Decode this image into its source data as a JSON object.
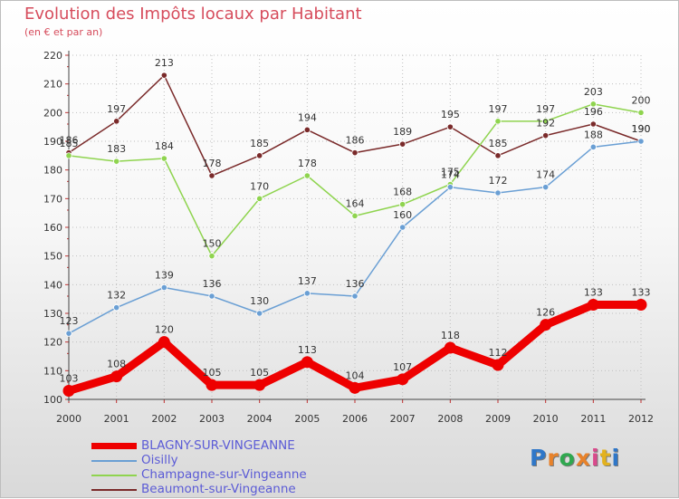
{
  "title": "Evolution des Impôts locaux par Habitant",
  "subtitle": "(en € et par an)",
  "logo": {
    "text": "Proxiti",
    "letters": [
      "P",
      "r",
      "o",
      "x",
      "i",
      "t",
      "i"
    ],
    "colors": [
      "#2f77c8",
      "#e8822a",
      "#2fa84f",
      "#e8822a",
      "#d94a8c",
      "#e3b21e",
      "#2f77c8"
    ]
  },
  "chart_data": {
    "type": "line",
    "categories": [
      "2000",
      "2001",
      "2002",
      "2003",
      "2004",
      "2005",
      "2006",
      "2007",
      "2008",
      "2009",
      "2010",
      "2011",
      "2012"
    ],
    "ylim": [
      100,
      220
    ],
    "yticks": [
      "100",
      "110",
      "120",
      "130",
      "140",
      "150",
      "160",
      "170",
      "180",
      "190",
      "200",
      "210",
      "220"
    ],
    "grid": true,
    "legend_position": "bottom-left",
    "series": [
      {
        "name": "BLAGNY-SUR-VINGEANNE",
        "color": "#ee0000",
        "values": [
          103,
          108,
          120,
          105,
          105,
          113,
          104,
          107,
          118,
          112,
          126,
          133,
          133
        ],
        "labels": [
          "103",
          "108",
          "120",
          "105",
          "105",
          "113",
          "104",
          "107",
          "118",
          "112",
          "126",
          "133",
          "133"
        ]
      },
      {
        "name": "Oisilly",
        "color": "#6a9fd4",
        "values": [
          123,
          132,
          139,
          136,
          130,
          137,
          136,
          160,
          174,
          172,
          174,
          188,
          190
        ],
        "labels": [
          "123",
          "132",
          "139",
          "136",
          "130",
          "137",
          "136",
          "160",
          "174",
          "172",
          "174",
          "188",
          "190"
        ]
      },
      {
        "name": "Champagne-sur-Vingeanne",
        "color": "#8fd44f",
        "values": [
          185,
          183,
          184,
          150,
          170,
          178,
          164,
          168,
          175,
          197,
          197,
          203,
          200
        ],
        "labels": [
          "185",
          "183",
          "184",
          "150",
          "170",
          "178",
          "164",
          "168",
          "175",
          "197",
          "197",
          "203",
          "200"
        ]
      },
      {
        "name": "Beaumont-sur-Vingeanne",
        "color": "#7a2a2a",
        "values": [
          186,
          197,
          213,
          178,
          185,
          194,
          186,
          189,
          195,
          185,
          192,
          196,
          190
        ],
        "labels": [
          "186",
          "197",
          "213",
          "178",
          "185",
          "194",
          "186",
          "189",
          "195",
          "185",
          "192",
          "196",
          "190"
        ]
      }
    ]
  }
}
